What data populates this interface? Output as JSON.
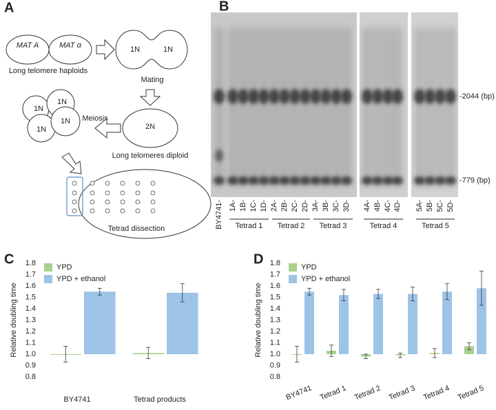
{
  "panel_labels": [
    "A",
    "B",
    "C",
    "D"
  ],
  "diagram": {
    "haploid_1": "MAT A",
    "haploid_2": "MAT α",
    "haploids_caption": "Long telomere haploids",
    "mating_cells": [
      "1N",
      "1N"
    ],
    "mating_caption": "Mating",
    "diploid": "2N",
    "diploid_caption": "Long telomeres diploid",
    "meiosis": "Meiosis",
    "tetrad_cells": [
      "1N",
      "1N",
      "1N",
      "1N"
    ],
    "dissection_caption": "Tetrad dissection"
  },
  "gel": {
    "lanes": [
      "BY4741-",
      "1A-",
      "1B-",
      "1C-",
      "1D-",
      "2A-",
      "2B-",
      "2C-",
      "2D-",
      "3A-",
      "3B-",
      "3C-",
      "3D-",
      "4A-",
      "4B-",
      "4C-",
      "4D-",
      "5A-",
      "5B-",
      "5C-",
      "5D-"
    ],
    "groups": [
      "Tetrad 1",
      "Tetrad 2",
      "Tetrad 3",
      "Tetrad 4",
      "Tetrad 5"
    ],
    "size_markers": [
      "-2044 (bp)",
      "-779 (bp)"
    ]
  },
  "chart_data": [
    {
      "type": "bar",
      "y_label": "Relative doubling time",
      "categories": [
        "BY4741",
        "Tetrad products"
      ],
      "series": [
        {
          "name": "YPD",
          "color": "#a9d18e",
          "values": [
            1.0,
            1.01
          ],
          "errors": [
            0.07,
            0.05
          ]
        },
        {
          "name": "YPD + ethanol",
          "color": "#9dc3e6",
          "values": [
            1.55,
            1.54
          ],
          "errors": [
            0.03,
            0.08
          ]
        }
      ],
      "bar_base": 1,
      "ylim": [
        0.8,
        1.8
      ],
      "yticks": [
        0.8,
        0.9,
        {
          "value": 1,
          "label": "1.0"
        },
        1.1,
        1.2,
        1.3,
        1.4,
        1.5,
        1.6,
        1.7,
        1.8
      ],
      "grid": false
    },
    {
      "type": "bar",
      "y_label": "Relative doubling time",
      "categories": [
        "BY4741",
        "Tetrad 1",
        "Tetrad 2",
        "Tetrad 3",
        "Tetrad 4",
        "Tetrad 5"
      ],
      "series": [
        {
          "name": "YPD",
          "color": "#a9d18e",
          "values": [
            1.0,
            1.03,
            0.98,
            0.99,
            1.01,
            1.07
          ],
          "errors": [
            0.07,
            0.05,
            0.02,
            0.02,
            0.04,
            0.03
          ]
        },
        {
          "name": "YPD + ethanol",
          "color": "#9dc3e6",
          "values": [
            1.55,
            1.52,
            1.53,
            1.53,
            1.55,
            1.58
          ],
          "errors": [
            0.03,
            0.05,
            0.04,
            0.06,
            0.07,
            0.15
          ]
        }
      ],
      "bar_base": 1,
      "ylim": [
        0.8,
        1.8
      ],
      "yticks": [
        0.8,
        0.9,
        {
          "value": 1,
          "label": "1.0"
        },
        1.1,
        1.2,
        1.3,
        1.4,
        1.5,
        1.6,
        1.7,
        1.8
      ],
      "grid": false
    }
  ]
}
